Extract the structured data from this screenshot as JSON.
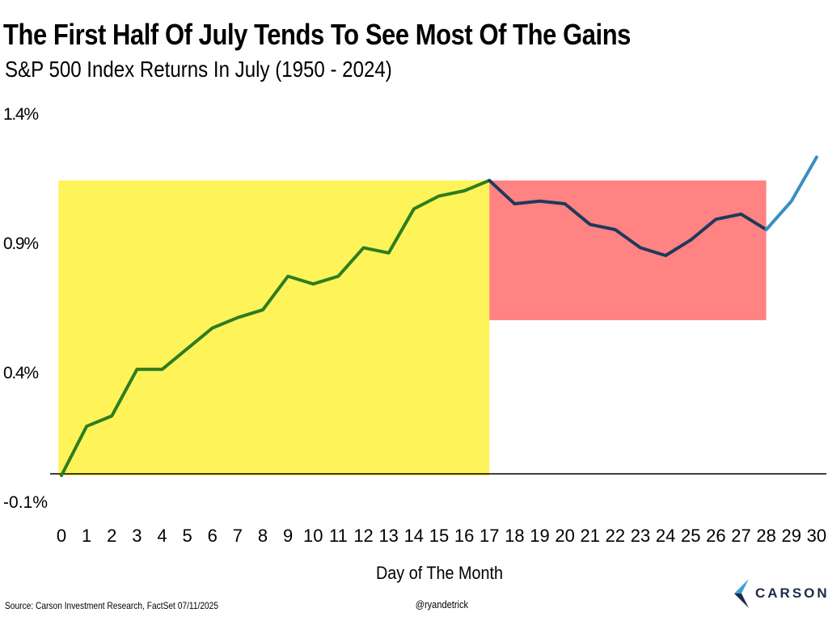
{
  "chart_data": {
    "type": "line",
    "title": "The First Half Of July Tends To See Most Of The Gains",
    "subtitle": "S&P 500 Index Returns In July (1950 - 2024)",
    "xlabel": "Day of The Month",
    "ylabel": "",
    "ylim": [
      -0.1,
      1.4
    ],
    "yticks": [
      -0.1,
      0.4,
      0.9,
      1.4
    ],
    "ytick_labels": [
      "-0.1%",
      "0.4%",
      "0.9%",
      "1.4%"
    ],
    "x": [
      0,
      1,
      2,
      3,
      4,
      5,
      6,
      7,
      8,
      9,
      10,
      11,
      12,
      13,
      14,
      15,
      16,
      17,
      18,
      19,
      20,
      21,
      22,
      23,
      24,
      25,
      26,
      27,
      28,
      29,
      30
    ],
    "xtick_labels": [
      "0",
      "1",
      "2",
      "3",
      "4",
      "5",
      "6",
      "7",
      "8",
      "9",
      "10",
      "11",
      "12",
      "13",
      "14",
      "15",
      "16",
      "17",
      "18",
      "19",
      "20",
      "21",
      "22",
      "23",
      "24",
      "25",
      "26",
      "27",
      "28",
      "29",
      "30"
    ],
    "values": [
      0.0,
      0.19,
      0.23,
      0.41,
      0.41,
      0.49,
      0.57,
      0.61,
      0.64,
      0.77,
      0.74,
      0.77,
      0.88,
      0.86,
      1.03,
      1.08,
      1.1,
      1.14,
      1.05,
      1.06,
      1.05,
      0.97,
      0.95,
      0.88,
      0.85,
      0.91,
      0.99,
      1.01,
      0.95,
      1.06,
      1.23
    ],
    "segments": [
      {
        "name": "first-half",
        "from": 0,
        "to": 17,
        "color": "#2e7d1e"
      },
      {
        "name": "second-half",
        "from": 17,
        "to": 28,
        "color": "#1f3a5a"
      },
      {
        "name": "month-end",
        "from": 28,
        "to": 30,
        "color": "#3a8fc0"
      }
    ],
    "shaded_regions": [
      {
        "name": "yellow-region",
        "x": [
          -0.12,
          17
        ],
        "y": [
          0,
          1.14
        ],
        "color": "#fff35a"
      },
      {
        "name": "red-region",
        "x": [
          17,
          28
        ],
        "y": [
          0.6,
          1.14
        ],
        "color": "#ff8383"
      }
    ],
    "grid": false,
    "legend": "none"
  },
  "footer": {
    "source": "Source: Carson Investment Research, FactSet 07/11/2025",
    "handle": "@ryandetrick",
    "logo_text": "CARSON"
  }
}
